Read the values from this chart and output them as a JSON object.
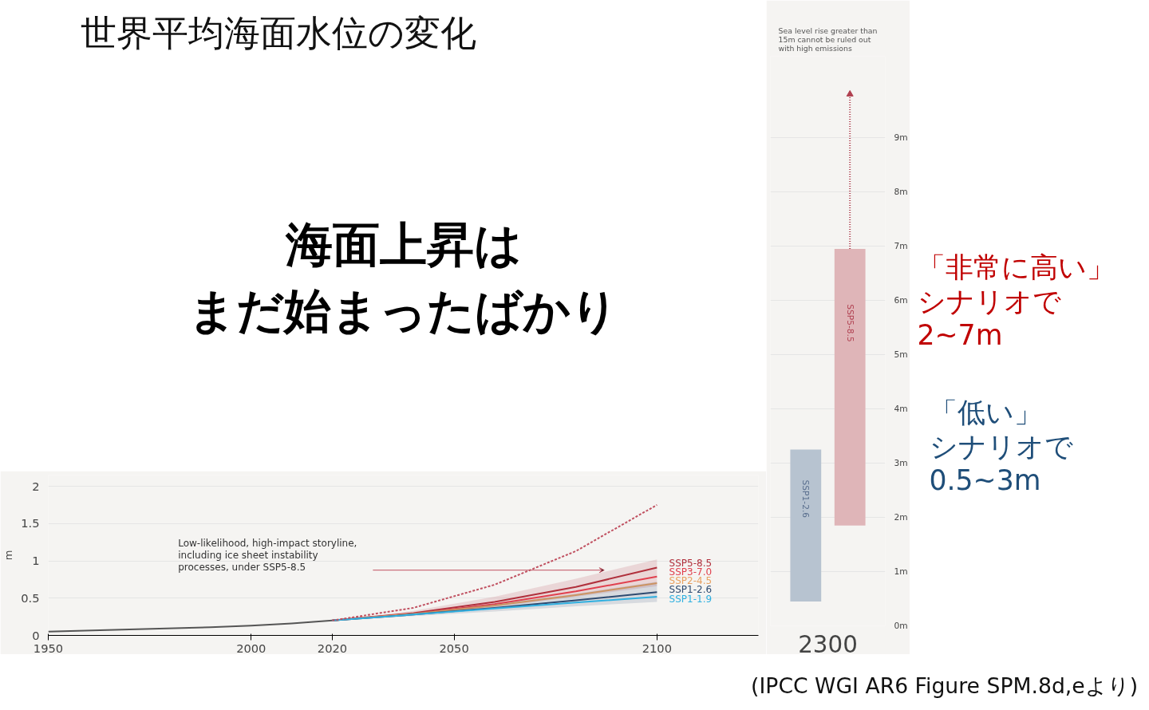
{
  "chart_data": [
    {
      "type": "other",
      "title": "世界平均海面水位の変化",
      "annotations": [
        "海面上昇は",
        "まだ始まったばかり"
      ]
    },
    {
      "type": "line",
      "xlim": [
        1950,
        2125
      ],
      "xticks": [
        1950,
        2000,
        2020,
        2050,
        2100
      ],
      "ylim": [
        0,
        2.15
      ],
      "yticks": [
        0,
        0.5,
        1,
        1.5,
        2
      ],
      "ylabel": "m",
      "grid": "y",
      "legend": false,
      "tick_labels": true,
      "series": [
        {
          "color": "#555555",
          "x": [
            1950,
            1970,
            1990,
            2000,
            2010,
            2020
          ],
          "values": [
            0.05,
            0.08,
            0.11,
            0.13,
            0.16,
            0.2
          ]
        },
        {
          "color": "#c05060",
          "line_style": "dashed",
          "x": [
            2020,
            2040,
            2060,
            2080,
            2100
          ],
          "values": [
            0.2,
            0.37,
            0.68,
            1.13,
            1.75
          ]
        },
        {
          "name": "SSP5-8.5",
          "color": "#b0303c",
          "x": [
            2020,
            2040,
            2060,
            2080,
            2100
          ],
          "values": [
            0.2,
            0.3,
            0.45,
            0.65,
            0.91
          ],
          "lower": [
            0.2,
            0.27,
            0.38,
            0.52,
            0.66
          ],
          "upper": [
            0.2,
            0.33,
            0.52,
            0.76,
            1.02
          ]
        },
        {
          "name": "SSP3-7.0",
          "color": "#e0404e",
          "x": [
            2020,
            2040,
            2060,
            2080,
            2100
          ],
          "values": [
            0.2,
            0.29,
            0.42,
            0.59,
            0.79
          ]
        },
        {
          "name": "SSP2-4.5",
          "color": "#e8a060",
          "x": [
            2020,
            2040,
            2060,
            2080,
            2100
          ],
          "values": [
            0.2,
            0.29,
            0.4,
            0.54,
            0.7
          ]
        },
        {
          "name": "SSP1-2.6",
          "color": "#2e4a70",
          "x": [
            2020,
            2040,
            2060,
            2080,
            2100
          ],
          "values": [
            0.2,
            0.28,
            0.37,
            0.47,
            0.58
          ],
          "lower": [
            0.2,
            0.26,
            0.32,
            0.39,
            0.45
          ],
          "upper": [
            0.2,
            0.3,
            0.42,
            0.56,
            0.72
          ]
        },
        {
          "name": "SSP1-1.9",
          "color": "#30b0e0",
          "x": [
            2020,
            2040,
            2060,
            2080,
            2100
          ],
          "values": [
            0.2,
            0.28,
            0.36,
            0.44,
            0.52
          ]
        }
      ],
      "annotations": [
        "Low-likelihood, high-impact storyline,\nincluding ice sheet instability\nprocesses, under SSP5-8.5"
      ]
    },
    {
      "type": "bar",
      "categories": [
        "SSP1-2.6",
        "SSP5-8.5"
      ],
      "base": [
        0.45,
        1.85
      ],
      "values": [
        2.8,
        5.1
      ],
      "colors": [
        "#b7c3d0",
        "#dfb5b8"
      ],
      "xlabel": "2300",
      "ylim": [
        0,
        10.5
      ],
      "grid": "y",
      "tick_labels": "y",
      "yticks": [
        {
          "value": 0,
          "label": "0m"
        },
        {
          "value": 1,
          "label": "1m"
        },
        {
          "value": 2,
          "label": "2m"
        },
        {
          "value": 3,
          "label": "3m"
        },
        {
          "value": 4,
          "label": "4m"
        },
        {
          "value": 5,
          "label": "5m"
        },
        {
          "value": 6,
          "label": "6m"
        },
        {
          "value": 7,
          "label": "7m"
        },
        {
          "value": 8,
          "label": "8m"
        },
        {
          "value": 9,
          "label": "9m"
        }
      ],
      "series": [
        {
          "type": "line",
          "line_style": "dotted",
          "color": "#b04050",
          "x": [
            "SSP5-8.5",
            "SSP5-8.5"
          ],
          "values": [
            6.95,
            9.8
          ]
        }
      ],
      "annotations": [
        "Sea level rise greater than\n15m cannot be ruled out\nwith high emissions"
      ]
    },
    {
      "type": "other",
      "annotations": [
        "「非常に高い」",
        "シナリオで",
        "2~7m",
        "「低い」",
        "シナリオで",
        "0.5~3m",
        "(IPCC WGI AR6 Figure SPM.8d,eより)"
      ]
    }
  ]
}
